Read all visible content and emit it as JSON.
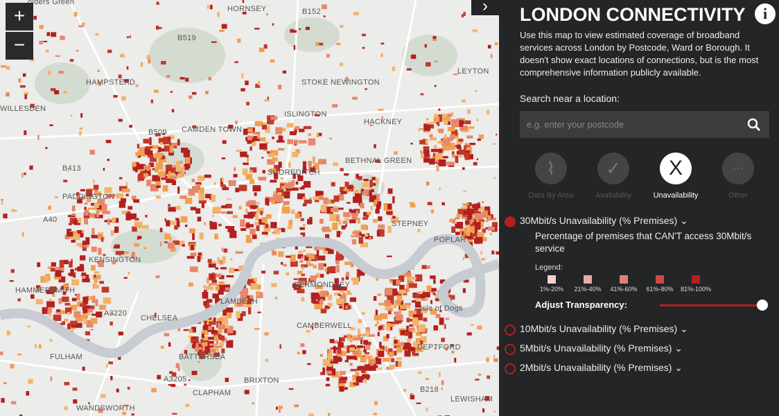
{
  "map": {
    "zoom_in": "+",
    "zoom_out": "−",
    "toggle": "›",
    "labels": [
      "olders Green",
      "HORNSEY",
      "HAMPSTEAD",
      "STOKE NEWINGTON",
      "LEYTON",
      "ISLINGTON",
      "CAMDEN TOWN",
      "HACKNEY",
      "SHOREDITCH",
      "BETHNAL GREEN",
      "PADDINGTON",
      "STEPNEY",
      "POPLAR",
      "KENSINGTON",
      "HAMMERSMITH",
      "LAMBETH",
      "BERMONDSEY",
      "CHELSEA",
      "CAMBERWELL",
      "DEPTFORD",
      "FULHAM",
      "BATTERSEA",
      "BRIXTON",
      "CLAPHAM",
      "WANDSWORTH",
      "LEWISHAM",
      "WILLESDEN",
      "B152",
      "B519",
      "B509",
      "B413",
      "A40",
      "A3220",
      "A3205",
      "B218",
      "Isle of Dogs"
    ]
  },
  "sidebar": {
    "title": "LONDON CONNECTIVITY",
    "info": "i",
    "description": "Use this map to view estimated coverage of broadband services across London by Postcode, Ward or Borough. It doesn't show exact locations of connections, but is the most comprehensive information publicly available.",
    "search_label": "Search near a location:",
    "search_placeholder": "e.g. enter your postcode",
    "tabs": [
      {
        "label": "Data By Area"
      },
      {
        "label": "Availability"
      },
      {
        "label": "Unavailability",
        "icon": "X"
      },
      {
        "label": "Other",
        "icon": "···"
      }
    ],
    "layers": [
      {
        "name": "30Mbit/s Unavailability (% Premises)",
        "description": "Percentage of premises that CAN'T access 30Mbit/s service"
      },
      {
        "name": "10Mbit/s Unavailability (% Premises)"
      },
      {
        "name": "5Mbit/s Unavailability (% Premises)"
      },
      {
        "name": "2Mbit/s Unavailability (% Premises)"
      }
    ],
    "legend_title": "Legend:",
    "legend": [
      {
        "label": "1%-20%",
        "color": "#f5d0cc"
      },
      {
        "label": "21%-40%",
        "color": "#ecaaa4"
      },
      {
        "label": "41%-60%",
        "color": "#df7f77"
      },
      {
        "label": "61%-80%",
        "color": "#cc4a42"
      },
      {
        "label": "81%-100%",
        "color": "#b3201f"
      }
    ],
    "transparency_label": "Adjust Transparency:"
  }
}
